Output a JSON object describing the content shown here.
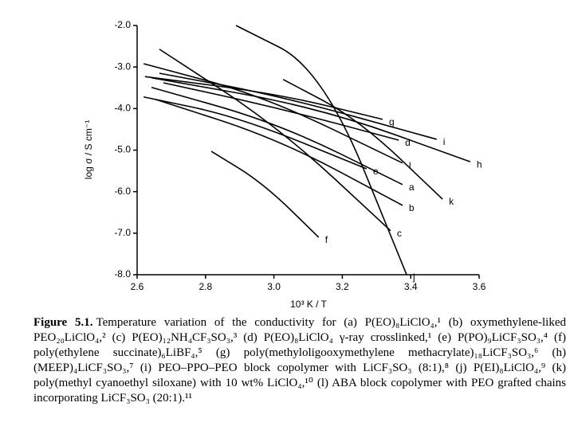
{
  "chart_data": {
    "type": "line",
    "xlabel": "10³ K / T",
    "ylabel": "log σ / S cm⁻¹",
    "xlim": [
      2.6,
      3.6
    ],
    "xticks": [
      2.6,
      2.8,
      {
        "value": 3.0,
        "label": "3.0"
      },
      3.2,
      3.4,
      3.6
    ],
    "ylim": [
      -8.0,
      -2.0
    ],
    "yticks": [
      {
        "value": -2,
        "label": "-2.0"
      },
      {
        "value": -3,
        "label": "-3.0"
      },
      {
        "value": -4,
        "label": "-4.0"
      },
      {
        "value": -5,
        "label": "-5.0"
      },
      {
        "value": -6,
        "label": "-6.0"
      },
      {
        "value": -7,
        "label": "-7.0"
      },
      {
        "value": -8,
        "label": "-8.0"
      }
    ],
    "series": [
      {
        "name": "a",
        "color": "#000000",
        "x": [
          2.642,
          3.015,
          3.376
        ],
        "values": [
          -3.49,
          -4.36,
          -5.83
        ]
      },
      {
        "name": "b",
        "color": "#000000",
        "x": [
          2.654,
          3.015,
          3.376
        ],
        "values": [
          -3.78,
          -4.74,
          -6.33
        ]
      },
      {
        "name": "c",
        "color": "#000000",
        "x": [
          2.665,
          3.015,
          3.341
        ],
        "values": [
          -2.57,
          -4.45,
          -6.94
        ]
      },
      {
        "name": "d",
        "color": "#000000",
        "x": [
          2.677,
          3.015,
          3.365
        ],
        "values": [
          -3.38,
          -3.99,
          -4.76
        ]
      },
      {
        "name": "e",
        "color": "#000000",
        "x": [
          2.619,
          2.898,
          3.271
        ],
        "values": [
          -3.72,
          -4.2,
          -5.45
        ]
      },
      {
        "name": "f",
        "color": "#000000",
        "x": [
          2.817,
          2.968,
          3.131
        ],
        "values": [
          -5.03,
          -5.79,
          -7.1
        ]
      },
      {
        "name": "g",
        "color": "#000000",
        "x": [
          2.623,
          3.015,
          3.318
        ],
        "values": [
          -3.23,
          -3.65,
          -4.26
        ]
      },
      {
        "name": "h",
        "color": "#000000",
        "x": [
          2.642,
          3.131,
          3.574
        ],
        "values": [
          -3.26,
          -3.97,
          -5.28
        ]
      },
      {
        "name": "i",
        "color": "#000000",
        "x": [
          2.665,
          3.015,
          3.476
        ],
        "values": [
          -3.15,
          -3.69,
          -4.74
        ]
      },
      {
        "name": "j",
        "color": "#000000",
        "x": [
          2.889,
          3.143,
          3.388
        ],
        "values": [
          -2.0,
          -3.05,
          -8.0
        ]
      },
      {
        "name": "k",
        "color": "#000000",
        "x": [
          3.027,
          3.248,
          3.493
        ],
        "values": [
          -3.3,
          -4.26,
          -6.18
        ]
      },
      {
        "name": "l",
        "color": "#000000",
        "x": [
          2.619,
          2.968,
          3.376
        ],
        "values": [
          -2.92,
          -3.69,
          -5.31
        ]
      }
    ]
  },
  "caption": {
    "label": "Figure 5.1.",
    "text": "Temperature variation of the conductivity for (a) P(EO)₈LiClO₄,¹ (b) oxymethylene-liked PEO₂₀LiClO₄,² (c) P(EO)₁₂NH₄CF₃SO₃,³ (d) P(EO)₈LiClO₄ γ-ray crosslinked,¹ (e) P(PO)₉LiCF₃SO₃,⁴ (f) poly(ethylene succinate)₆LiBF₄,⁵ (g) poly(methyloligooxymethylene methacrylate)₁₈LiCF₃SO₃,⁶ (h) (MEEP)₄LiCF₃SO₃,⁷ (i) PEO–PPO–PEO block copolymer with LiCF₃SO₃ (8:1),⁸ (j) P(EI)₈LiClO₄,⁹ (k) poly(methyl cyanoethyl siloxane) with 10 wt% LiClO₄,¹⁰ (l) ABA block copolymer with PEO grafted chains incorporating LiCF₃SO₃ (20:1).¹¹"
  }
}
